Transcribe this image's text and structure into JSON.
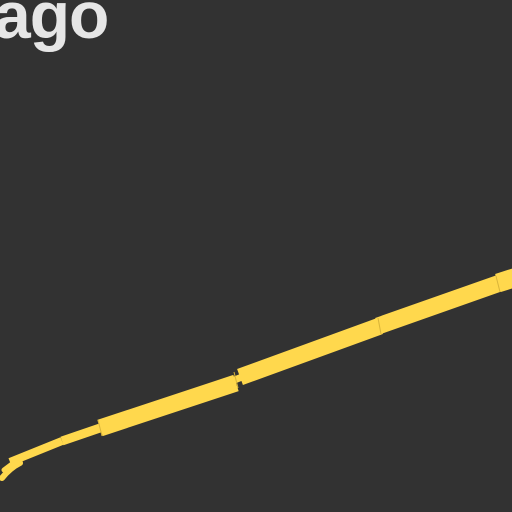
{
  "map": {
    "place_label": "ago",
    "colors": {
      "background": "#323232",
      "road": "#ffd84d",
      "road_casing": "#d9b43a",
      "label": "#e6e6e6"
    }
  }
}
